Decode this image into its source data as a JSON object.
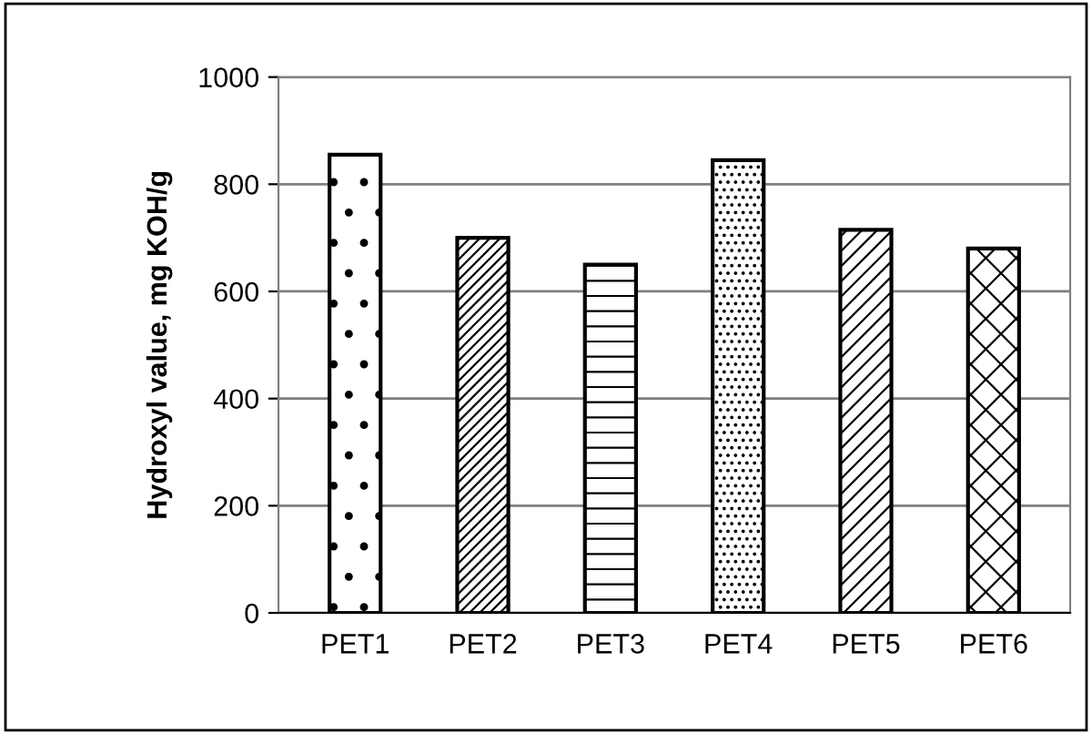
{
  "chart_data": {
    "type": "bar",
    "ylabel": "Hydroxyl value, mg KOH/g",
    "categories": [
      "PET1",
      "PET2",
      "PET3",
      "PET4",
      "PET5",
      "PET6"
    ],
    "values": [
      855,
      700,
      650,
      845,
      715,
      680
    ],
    "ylim": [
      0,
      1000
    ],
    "yticks": [
      0,
      200,
      400,
      600,
      800,
      1000
    ],
    "grid": "y",
    "legend": false
  }
}
